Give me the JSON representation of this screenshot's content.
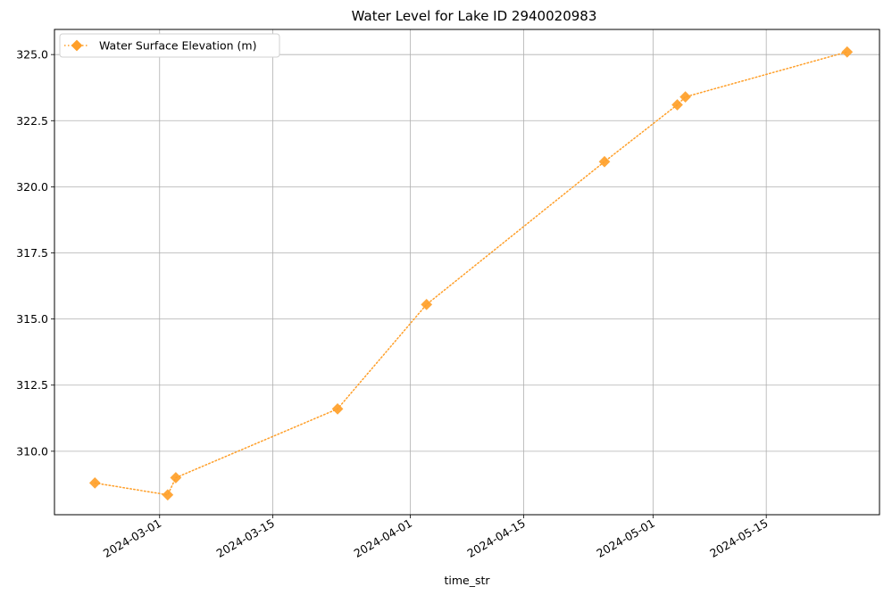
{
  "chart_data": {
    "type": "line",
    "title": "Water Level for Lake ID 2940020983",
    "xlabel": "time_str",
    "ylabel": "",
    "x_axis_type": "date",
    "xlim": [
      "2024-02-17",
      "2024-05-29"
    ],
    "ylim": [
      307.6,
      325.95
    ],
    "x_ticks": [
      "2024-03-01",
      "2024-03-15",
      "2024-04-01",
      "2024-04-15",
      "2024-05-01",
      "2024-05-15"
    ],
    "y_ticks": [
      310.0,
      312.5,
      315.0,
      317.5,
      320.0,
      322.5,
      325.0
    ],
    "y_tick_labels": [
      "310.0",
      "312.5",
      "315.0",
      "317.5",
      "320.0",
      "322.5",
      "325.0"
    ],
    "grid": true,
    "legend_position": "top-left",
    "series": [
      {
        "name": "Water Surface Elevation (m)",
        "color": "#ff9f29",
        "line_style": "dotted",
        "marker": "diamond",
        "x": [
          "2024-02-22",
          "2024-03-02",
          "2024-03-03",
          "2024-03-23",
          "2024-04-03",
          "2024-04-25",
          "2024-05-04",
          "2024-05-05",
          "2024-05-25"
        ],
        "y": [
          308.8,
          308.35,
          309.0,
          311.6,
          315.55,
          320.95,
          323.1,
          323.4,
          325.1
        ]
      }
    ]
  }
}
